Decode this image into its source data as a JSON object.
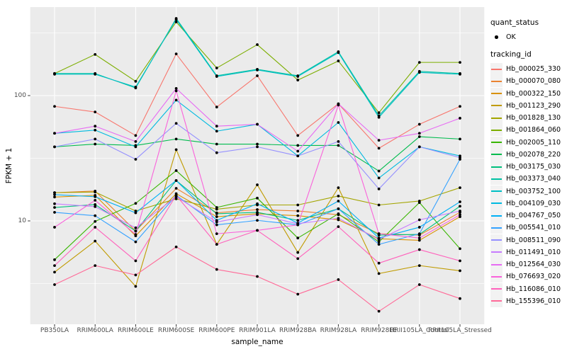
{
  "chart_data": {
    "type": "line",
    "title": "",
    "xlabel": "sample_name",
    "ylabel": "FPKM + 1",
    "x_axis": {
      "label": "sample_name",
      "categories": [
        "PB350LA",
        "RRIM600LA",
        "RRIM600LE",
        "RRIM600SE",
        "RRIM600PE",
        "RRIM901LA",
        "RRIM928BA",
        "RRIM928LA",
        "RRIM928LE",
        "RRII105LA_Control",
        "RRII105LA_Stressed"
      ]
    },
    "y_axis": {
      "label": "FPKM + 1",
      "scale": "log10",
      "ticks": [
        {
          "label": "100",
          "value": 100
        },
        {
          "label": "10",
          "value": 10
        }
      ],
      "minor_gridlines": [
        316,
        31.6,
        3.16
      ],
      "range_approx": [
        1.5,
        500
      ]
    },
    "legend": {
      "quant_status": {
        "title": "quant_status",
        "items": [
          {
            "label": "OK",
            "glyph": "black-point"
          }
        ]
      },
      "tracking_id": {
        "title": "tracking_id"
      }
    },
    "colors": {
      "panel_bg": "#EBEBEB",
      "grid": "#FFFFFF",
      "tick": "#333333",
      "tick_label": "#4D4D4D",
      "point": "#000000",
      "key_bg": "#F2F2F2"
    },
    "series": [
      {
        "name": "Hb_000025_330",
        "color": "#F8766D",
        "values": [
          82,
          74,
          48,
          215,
          81,
          144,
          48,
          86,
          38,
          59,
          82
        ]
      },
      {
        "name": "Hb_000070_080",
        "color": "#EA8331",
        "values": [
          16.8,
          17.3,
          8.3,
          18.2,
          11.6,
          12.3,
          12.0,
          11.2,
          7.9,
          7.7,
          11.7
        ]
      },
      {
        "name": "Hb_000322_150",
        "color": "#D89000",
        "values": [
          15.5,
          16.0,
          7.6,
          16.5,
          10.8,
          11.4,
          11.0,
          10.2,
          7.2,
          7.0,
          10.8
        ]
      },
      {
        "name": "Hb_001123_290",
        "color": "#C09B00",
        "values": [
          3.9,
          6.9,
          3.0,
          37,
          6.5,
          19.4,
          5.6,
          18.4,
          3.8,
          4.4,
          4.0
        ]
      },
      {
        "name": "Hb_001828_130",
        "color": "#A3A500",
        "values": [
          16.8,
          17.0,
          12.0,
          15.0,
          12.4,
          13.4,
          13.4,
          15.8,
          13.4,
          14.4,
          18.4
        ]
      },
      {
        "name": "Hb_001864_060",
        "color": "#7CAE00",
        "values": [
          150,
          213,
          130,
          387,
          166,
          255,
          133,
          189,
          73,
          184,
          184
        ]
      },
      {
        "name": "Hb_002005_110",
        "color": "#39B600",
        "values": [
          4.9,
          9.9,
          13.8,
          25.2,
          12.8,
          15.2,
          7.3,
          11.4,
          6.8,
          14.0,
          6.0
        ]
      },
      {
        "name": "Hb_002078_220",
        "color": "#00BB4E",
        "values": [
          39,
          41,
          40,
          45,
          41,
          41,
          40,
          40,
          25,
          47,
          45
        ]
      },
      {
        "name": "Hb_003175_030",
        "color": "#00BF7D",
        "values": [
          12.8,
          13.5,
          8.3,
          21,
          11.4,
          11.7,
          10.1,
          12.5,
          7.7,
          7.8,
          13.1
        ]
      },
      {
        "name": "Hb_003373_040",
        "color": "#00C1A3",
        "values": [
          150,
          150,
          115,
          413,
          144,
          162,
          144,
          224,
          69,
          156,
          150
        ]
      },
      {
        "name": "Hb_003752_100",
        "color": "#00BFC4",
        "values": [
          148,
          148,
          117,
          405,
          142,
          160,
          142,
          220,
          67,
          153,
          148
        ]
      },
      {
        "name": "Hb_004109_030",
        "color": "#00BAE0",
        "values": [
          50,
          53,
          39,
          92,
          52,
          59,
          33,
          61,
          22,
          39,
          33
        ]
      },
      {
        "name": "Hb_004767_050",
        "color": "#00B0F6",
        "values": [
          16.2,
          15.6,
          11.6,
          21,
          10.1,
          13.7,
          9.6,
          14.4,
          7.3,
          8.9,
          14.2
        ]
      },
      {
        "name": "Hb_005541_010",
        "color": "#35A2FF",
        "values": [
          11.7,
          11.0,
          6.8,
          16.0,
          9.3,
          10.1,
          9.3,
          12.5,
          6.5,
          7.9,
          31
        ]
      },
      {
        "name": "Hb_008511_090",
        "color": "#9590FF",
        "values": [
          39,
          45,
          31,
          60,
          35,
          39,
          33,
          43,
          18,
          39,
          32
        ]
      },
      {
        "name": "Hb_011491_010",
        "color": "#C77CFF",
        "values": [
          13.7,
          13.0,
          8.8,
          15.6,
          9.8,
          11.2,
          9.5,
          10.5,
          7.1,
          10.2,
          12.0
        ]
      },
      {
        "name": "Hb_012564_030",
        "color": "#E76BF3",
        "values": [
          50,
          57,
          43,
          114,
          57,
          59,
          36,
          86,
          44,
          50,
          66
        ]
      },
      {
        "name": "Hb_076693_020",
        "color": "#FA62DB",
        "values": [
          8.9,
          14.6,
          7.8,
          109,
          7.9,
          8.4,
          9.3,
          84,
          7.9,
          7.3,
          11.2
        ]
      },
      {
        "name": "Hb_116086_010",
        "color": "#FF62BC",
        "values": [
          4.4,
          8.9,
          4.8,
          16,
          6.5,
          8.4,
          5.0,
          9.0,
          4.6,
          5.9,
          4.8
        ]
      },
      {
        "name": "Hb_155396_010",
        "color": "#FF6A98",
        "values": [
          3.1,
          4.4,
          3.7,
          6.2,
          4.1,
          3.6,
          2.6,
          3.4,
          1.9,
          3.1,
          2.4
        ]
      }
    ]
  }
}
